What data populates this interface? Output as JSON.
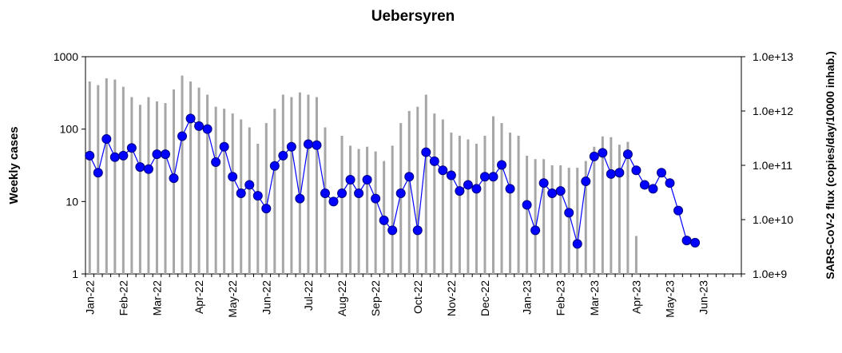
{
  "chart_data": {
    "type": "bar-line",
    "title": "Uebersyren",
    "y_label": "Weekly cases",
    "y2_label": "SARS-CoV-2 flux (copies/day/10000 inhab.)",
    "categories": [
      "Jan-22",
      null,
      null,
      null,
      "Feb-22",
      null,
      null,
      null,
      "Mar-22",
      null,
      null,
      null,
      null,
      "Apr-22",
      null,
      null,
      null,
      "May-22",
      null,
      null,
      null,
      "Jun-22",
      null,
      null,
      null,
      null,
      "Jul-22",
      null,
      null,
      null,
      "Aug-22",
      null,
      null,
      null,
      "Sep-22",
      null,
      null,
      null,
      null,
      "Oct-22",
      null,
      null,
      null,
      "Nov-22",
      null,
      null,
      null,
      "Dec-22",
      null,
      null,
      null,
      null,
      "Jan-23",
      null,
      null,
      null,
      "Feb-23",
      null,
      null,
      null,
      "Mar-23",
      null,
      null,
      null,
      null,
      "Apr-23",
      null,
      null,
      null,
      "May-23",
      null,
      null,
      null,
      "Jun-23",
      null,
      null,
      null,
      null
    ],
    "ylim": [
      1,
      1000
    ],
    "yticks": [
      1,
      10,
      100,
      1000
    ],
    "y_log": true,
    "y2lim": [
      1000000000.0,
      10000000000000.0
    ],
    "y2_log": true,
    "y2ticks": [
      {
        "value": 1000000000.0,
        "label": "1.0e+9"
      },
      {
        "value": 10000000000.0,
        "label": "1.0e+10"
      },
      {
        "value": 100000000000.0,
        "label": "1.0e+11"
      },
      {
        "value": 1000000000000.0,
        "label": "1.0e+12"
      },
      {
        "value": 10000000000000.0,
        "label": "1.0e+13"
      }
    ],
    "series": [
      {
        "name": "SARS-CoV-2 flux",
        "kind": "bar",
        "axis": "y2",
        "color": "#a6a6a6",
        "values": [
          3500000000000.0,
          3000000000000.0,
          4000000000000.0,
          3800000000000.0,
          2800000000000.0,
          1800000000000.0,
          1300000000000.0,
          1800000000000.0,
          1500000000000.0,
          1400000000000.0,
          2500000000000.0,
          4500000000000.0,
          3500000000000.0,
          2700000000000.0,
          2000000000000.0,
          1200000000000.0,
          1100000000000.0,
          900000000000.0,
          700000000000.0,
          500000000000.0,
          250000000000.0,
          600000000000.0,
          1100000000000.0,
          2000000000000.0,
          1800000000000.0,
          2200000000000.0,
          2000000000000.0,
          1800000000000.0,
          500000000000.0,
          null,
          350000000000.0,
          230000000000.0,
          200000000000.0,
          220000000000.0,
          180000000000.0,
          120000000000.0,
          230000000000.0,
          600000000000.0,
          1000000000000.0,
          1200000000000.0,
          2000000000000.0,
          900000000000.0,
          700000000000.0,
          400000000000.0,
          350000000000.0,
          300000000000.0,
          250000000000.0,
          350000000000.0,
          800000000000.0,
          600000000000.0,
          400000000000.0,
          350000000000.0,
          150000000000.0,
          130000000000.0,
          130000000000.0,
          100000000000.0,
          100000000000.0,
          90000000000.0,
          90000000000.0,
          120000000000.0,
          220000000000.0,
          340000000000.0,
          330000000000.0,
          240000000000.0,
          270000000000.0,
          5000000000.0,
          null,
          null,
          null,
          null,
          null,
          null,
          null,
          null,
          null,
          null,
          null,
          null
        ]
      },
      {
        "name": "Weekly cases",
        "kind": "line",
        "color": "#0000ff",
        "values": [
          43,
          25,
          73,
          41,
          43,
          55,
          30,
          28,
          45,
          45,
          21,
          80,
          140,
          110,
          100,
          35,
          57,
          22,
          13,
          17,
          12,
          8,
          31,
          43,
          57,
          11,
          62,
          60,
          13,
          10,
          13,
          20,
          13,
          20,
          11,
          5.5,
          4,
          13,
          22,
          4,
          48,
          36,
          27,
          23,
          14,
          17,
          15,
          22,
          22,
          32,
          15,
          null,
          9,
          4,
          18,
          13,
          14,
          7,
          2.6,
          19,
          42,
          47,
          24,
          25,
          45,
          27,
          17,
          15,
          25,
          18,
          7.5,
          2.9,
          2.7,
          null,
          null,
          null,
          null,
          null
        ]
      }
    ]
  }
}
